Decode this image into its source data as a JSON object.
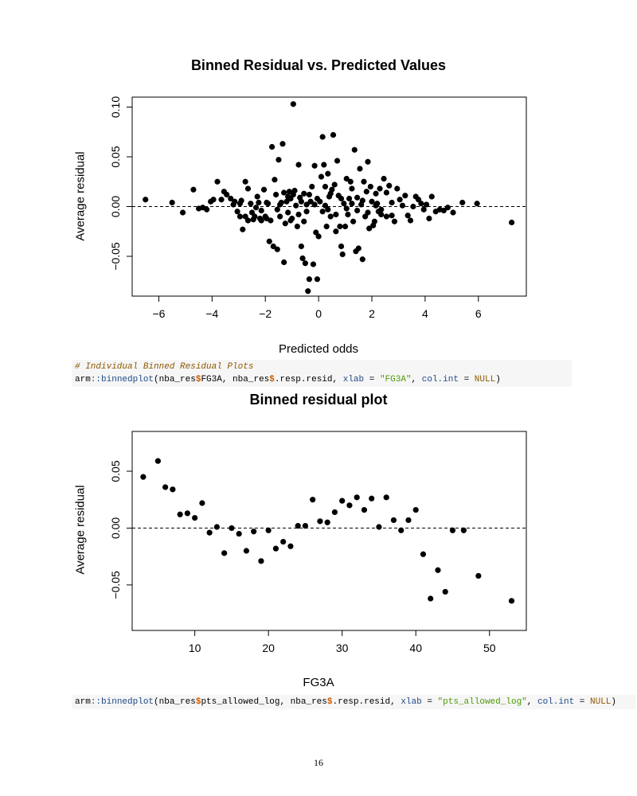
{
  "plots": [
    {
      "title": "Binned Residual vs. Predicted Values",
      "xlabel": "Predicted odds",
      "ylabel": "Average residual"
    },
    {
      "title": "Binned residual plot",
      "xlabel": "FG3A",
      "ylabel": "Average residual"
    }
  ],
  "code1": {
    "comment": "# Individual Binned Residual Plots",
    "line": {
      "pkg": "arm",
      "sep": "::",
      "fn": "binnedplot",
      "a1": "(nba_res",
      "d1": "$",
      "a2": "FG3A, nba_res",
      "d2": "$",
      "a3": ".resp.resid, ",
      "xlab": "xlab",
      "eq1": " = ",
      "xlabval": "\"FG3A\"",
      "comma": ", ",
      "colint": "col.int",
      "eq2": " = ",
      "nullv": "NULL",
      "close": ")"
    }
  },
  "code2": {
    "line": {
      "pkg": "arm",
      "sep": "::",
      "fn": "binnedplot",
      "a1": "(nba_res",
      "d1": "$",
      "a2": "pts_allowed_log, nba_res",
      "d2": "$",
      "a3": ".resp.resid, ",
      "xlab": "xlab",
      "eq1": " = ",
      "xlabval": "\"pts_allowed_log\"",
      "comma": ", ",
      "colint": "col.int",
      "eq2": " = ",
      "nullv": "NULL",
      "close": ")"
    }
  },
  "page_number": "16",
  "chart_data": [
    {
      "type": "scatter",
      "title": "Binned Residual vs. Predicted Values",
      "xlabel": "Predicted odds",
      "ylabel": "Average residual",
      "xlim": [
        -7,
        7.8
      ],
      "ylim": [
        -0.09,
        0.11
      ],
      "xticks": [
        -6,
        -4,
        -2,
        0,
        2,
        4,
        6
      ],
      "xtick_labels": [
        "−6",
        "−4",
        "−2",
        "0",
        "2",
        "4",
        "6"
      ],
      "yticks": [
        -0.05,
        0.0,
        0.05,
        0.1
      ],
      "ytick_labels": [
        "−0.05",
        "0.00",
        "0.05",
        "0.10"
      ],
      "reference_line": 0,
      "points": [
        [
          -6.5,
          0.007
        ],
        [
          -5.5,
          0.004
        ],
        [
          -5.1,
          -0.006
        ],
        [
          -4.7,
          0.017
        ],
        [
          -4.5,
          -0.002
        ],
        [
          -4.35,
          -0.001
        ],
        [
          -4.2,
          -0.003
        ],
        [
          -4.05,
          0.005
        ],
        [
          -3.95,
          0.007
        ],
        [
          -3.8,
          0.025
        ],
        [
          -3.65,
          0.007
        ],
        [
          -3.55,
          0.015
        ],
        [
          -3.45,
          0.012
        ],
        [
          -3.3,
          0.008
        ],
        [
          -3.2,
          0.002
        ],
        [
          -3.15,
          0.005
        ],
        [
          -3.05,
          -0.005
        ],
        [
          -2.95,
          -0.01
        ],
        [
          -2.9,
          0.006
        ],
        [
          -2.85,
          -0.023
        ],
        [
          -2.75,
          0.025
        ],
        [
          -2.65,
          0.018
        ],
        [
          -2.55,
          0.003
        ],
        [
          -2.5,
          -0.006
        ],
        [
          -2.45,
          -0.013
        ],
        [
          -2.4,
          -0.01
        ],
        [
          -2.3,
          0.01
        ],
        [
          -2.2,
          -0.012
        ],
        [
          -2.15,
          -0.004
        ],
        [
          -2.05,
          0.017
        ],
        [
          -2.0,
          -0.01
        ],
        [
          -1.95,
          -0.012
        ],
        [
          -1.9,
          0.003
        ],
        [
          -1.85,
          -0.035
        ],
        [
          -1.75,
          0.06
        ],
        [
          -1.7,
          -0.04
        ],
        [
          -1.65,
          0.027
        ],
        [
          -1.6,
          0.012
        ],
        [
          -1.55,
          -0.043
        ],
        [
          -1.5,
          0.047
        ],
        [
          -1.45,
          -0.01
        ],
        [
          -1.4,
          0.004
        ],
        [
          -1.35,
          0.063
        ],
        [
          -1.3,
          0.014
        ],
        [
          -1.3,
          -0.056
        ],
        [
          -1.25,
          -0.017
        ],
        [
          -1.2,
          0.005
        ],
        [
          -1.15,
          -0.006
        ],
        [
          -1.1,
          0.015
        ],
        [
          -1.05,
          0.008
        ],
        [
          -1.0,
          -0.012
        ],
        [
          -0.95,
          0.103
        ],
        [
          -0.9,
          0.016
        ],
        [
          -0.85,
          0.001
        ],
        [
          -0.8,
          -0.02
        ],
        [
          -0.75,
          0.042
        ],
        [
          -0.7,
          0.009
        ],
        [
          -0.65,
          -0.04
        ],
        [
          -0.6,
          -0.052
        ],
        [
          -0.55,
          0.013
        ],
        [
          -0.5,
          -0.057
        ],
        [
          -0.45,
          -0.005
        ],
        [
          -0.4,
          -0.085
        ],
        [
          -0.35,
          -0.073
        ],
        [
          -0.3,
          0.005
        ],
        [
          -0.25,
          0.02
        ],
        [
          -0.2,
          -0.058
        ],
        [
          -0.15,
          0.041
        ],
        [
          -0.1,
          -0.026
        ],
        [
          -0.05,
          -0.073
        ],
        [
          0.0,
          -0.03
        ],
        [
          0.05,
          0.005
        ],
        [
          0.1,
          0.03
        ],
        [
          0.15,
          0.07
        ],
        [
          0.2,
          0.042
        ],
        [
          0.25,
          0.02
        ],
        [
          0.3,
          -0.02
        ],
        [
          0.35,
          0.033
        ],
        [
          0.4,
          0.01
        ],
        [
          0.45,
          -0.01
        ],
        [
          0.5,
          0.017
        ],
        [
          0.55,
          0.072
        ],
        [
          0.6,
          0.022
        ],
        [
          0.65,
          -0.025
        ],
        [
          0.7,
          0.046
        ],
        [
          0.75,
          0.011
        ],
        [
          0.8,
          -0.02
        ],
        [
          0.85,
          -0.04
        ],
        [
          0.9,
          -0.048
        ],
        [
          0.95,
          0.003
        ],
        [
          1.0,
          -0.02
        ],
        [
          1.05,
          0.028
        ],
        [
          1.1,
          -0.008
        ],
        [
          1.15,
          0.008
        ],
        [
          1.2,
          0.025
        ],
        [
          1.25,
          0.018
        ],
        [
          1.3,
          -0.015
        ],
        [
          1.35,
          0.057
        ],
        [
          1.4,
          -0.045
        ],
        [
          1.45,
          0.009
        ],
        [
          1.5,
          -0.042
        ],
        [
          1.55,
          0.038
        ],
        [
          1.6,
          0.002
        ],
        [
          1.65,
          -0.053
        ],
        [
          1.7,
          0.025
        ],
        [
          1.75,
          -0.01
        ],
        [
          1.8,
          0.015
        ],
        [
          1.85,
          0.045
        ],
        [
          1.9,
          -0.022
        ],
        [
          1.95,
          0.02
        ],
        [
          2.0,
          0.005
        ],
        [
          2.05,
          -0.019
        ],
        [
          2.1,
          -0.015
        ],
        [
          2.15,
          0.013
        ],
        [
          2.2,
          0.003
        ],
        [
          2.25,
          -0.005
        ],
        [
          2.3,
          0.018
        ],
        [
          2.35,
          -0.003
        ],
        [
          2.45,
          0.028
        ],
        [
          2.55,
          0.014
        ],
        [
          2.65,
          0.021
        ],
        [
          2.75,
          -0.009
        ],
        [
          2.85,
          -0.015
        ],
        [
          2.95,
          0.018
        ],
        [
          3.05,
          0.007
        ],
        [
          3.15,
          0.001
        ],
        [
          3.25,
          0.011
        ],
        [
          3.35,
          -0.009
        ],
        [
          3.45,
          -0.014
        ],
        [
          3.55,
          0.0
        ],
        [
          3.65,
          0.01
        ],
        [
          3.75,
          0.007
        ],
        [
          3.85,
          0.003
        ],
        [
          3.95,
          -0.003
        ],
        [
          4.05,
          0.002
        ],
        [
          4.15,
          -0.012
        ],
        [
          4.25,
          0.01
        ],
        [
          4.4,
          -0.005
        ],
        [
          4.55,
          -0.003
        ],
        [
          4.7,
          -0.004
        ],
        [
          4.85,
          -0.001
        ],
        [
          5.05,
          -0.006
        ],
        [
          5.4,
          0.004
        ],
        [
          5.95,
          0.003
        ],
        [
          7.25,
          -0.016
        ],
        [
          -2.95,
          0.003
        ],
        [
          -2.75,
          -0.01
        ],
        [
          -2.65,
          -0.014
        ],
        [
          -2.35,
          -0.001
        ],
        [
          -2.25,
          0.004
        ],
        [
          -2.15,
          -0.014
        ],
        [
          -1.95,
          0.004
        ],
        [
          -1.8,
          -0.014
        ],
        [
          -1.55,
          -0.003
        ],
        [
          -1.45,
          0.002
        ],
        [
          -1.15,
          0.01
        ],
        [
          -1.05,
          -0.014
        ],
        [
          -0.95,
          0.012
        ],
        [
          -0.75,
          -0.008
        ],
        [
          -0.65,
          0.005
        ],
        [
          -0.55,
          -0.015
        ],
        [
          -0.45,
          0.002
        ],
        [
          -0.35,
          0.012
        ],
        [
          -0.15,
          0.002
        ],
        [
          -0.05,
          0.008
        ],
        [
          0.15,
          -0.005
        ],
        [
          0.25,
          0.001
        ],
        [
          0.35,
          -0.003
        ],
        [
          0.45,
          0.013
        ],
        [
          0.65,
          -0.008
        ],
        [
          0.85,
          0.008
        ],
        [
          1.05,
          -0.002
        ],
        [
          1.25,
          0.003
        ],
        [
          1.45,
          -0.004
        ],
        [
          1.65,
          0.006
        ],
        [
          1.85,
          -0.006
        ],
        [
          2.15,
          0.001
        ],
        [
          2.35,
          -0.008
        ],
        [
          2.55,
          -0.01
        ],
        [
          2.75,
          0.004
        ]
      ]
    },
    {
      "type": "scatter",
      "title": "Binned residual plot",
      "xlabel": "FG3A",
      "ylabel": "Average residual",
      "xlim": [
        1.5,
        55
      ],
      "ylim": [
        -0.09,
        0.085
      ],
      "xticks": [
        10,
        20,
        30,
        40,
        50
      ],
      "xtick_labels": [
        "10",
        "20",
        "30",
        "40",
        "50"
      ],
      "yticks": [
        -0.05,
        0.0,
        0.05
      ],
      "ytick_labels": [
        "−0.05",
        "0.00",
        "0.05"
      ],
      "reference_line": 0,
      "points": [
        [
          3,
          0.045
        ],
        [
          5,
          0.059
        ],
        [
          6,
          0.036
        ],
        [
          7,
          0.034
        ],
        [
          8,
          0.012
        ],
        [
          9,
          0.013
        ],
        [
          10,
          0.009
        ],
        [
          11,
          0.022
        ],
        [
          12,
          -0.004
        ],
        [
          13,
          0.001
        ],
        [
          14,
          -0.022
        ],
        [
          15,
          0.0
        ],
        [
          16,
          -0.005
        ],
        [
          17,
          -0.02
        ],
        [
          18,
          -0.003
        ],
        [
          19,
          -0.029
        ],
        [
          20,
          -0.002
        ],
        [
          21,
          -0.018
        ],
        [
          22,
          -0.012
        ],
        [
          23,
          -0.016
        ],
        [
          24,
          0.002
        ],
        [
          25,
          0.002
        ],
        [
          26,
          0.025
        ],
        [
          27,
          0.006
        ],
        [
          28,
          0.005
        ],
        [
          29,
          0.014
        ],
        [
          30,
          0.024
        ],
        [
          31,
          0.02
        ],
        [
          32,
          0.027
        ],
        [
          33,
          0.016
        ],
        [
          34,
          0.026
        ],
        [
          35,
          0.001
        ],
        [
          36,
          0.027
        ],
        [
          37,
          0.007
        ],
        [
          38,
          -0.002
        ],
        [
          39,
          0.007
        ],
        [
          40,
          0.016
        ],
        [
          41,
          -0.023
        ],
        [
          42,
          -0.062
        ],
        [
          43,
          -0.037
        ],
        [
          44,
          -0.056
        ],
        [
          45,
          -0.002
        ],
        [
          46.5,
          -0.002
        ],
        [
          48.5,
          -0.042
        ],
        [
          53,
          -0.064
        ]
      ]
    }
  ]
}
